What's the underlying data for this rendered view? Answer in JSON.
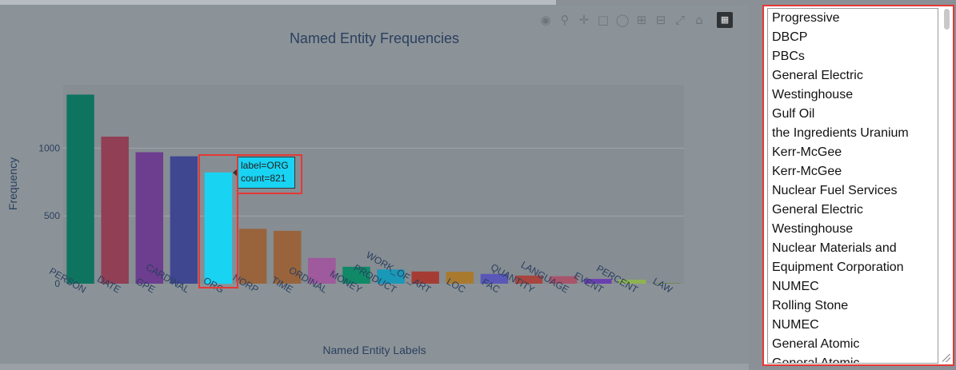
{
  "toolbar": {
    "icons": [
      "camera-icon",
      "zoom-icon",
      "pan-icon",
      "box-select-icon",
      "lasso-icon",
      "zoom-in-icon",
      "zoom-out-icon",
      "autoscale-icon",
      "reset-axes-icon",
      "plotly-logo-icon"
    ]
  },
  "chart_data": {
    "type": "bar",
    "title": "Named Entity Frequencies",
    "xlabel": "Named Entity Labels",
    "ylabel": "Frequency",
    "ylim": [
      0,
      1400
    ],
    "yticks": [
      0,
      500,
      1000
    ],
    "grid": true,
    "categories": [
      "PERSON",
      "DATE",
      "GPE",
      "CARDINAL",
      "ORG",
      "NORP",
      "TIME",
      "ORDINAL",
      "MONEY",
      "PRODUCT",
      "WORK_OF_ART",
      "LOC",
      "FAC",
      "QUANTITY",
      "LANGUAGE",
      "EVENT",
      "PERCENT",
      "LAW"
    ],
    "values": [
      1395,
      1085,
      970,
      940,
      821,
      405,
      390,
      190,
      125,
      105,
      90,
      88,
      72,
      60,
      55,
      35,
      30,
      5
    ],
    "colors": [
      "#0e7460",
      "#903f54",
      "#6d3d8f",
      "#3f4791",
      "#19d3f3",
      "#99643c",
      "#99643c",
      "#9e5a9c",
      "#0f8966",
      "#1a98b8",
      "#a53c34",
      "#a97a2e",
      "#5a57b8",
      "#a7453e",
      "#a8546a",
      "#6a3fb0",
      "#8fb352",
      "#6b8a4b"
    ],
    "hover": {
      "category": "ORG",
      "text_label": "label=ORG",
      "text_count": "count=821"
    }
  },
  "entity_list": [
    "Progressive",
    "DBCP",
    "PBCs",
    "General Electric",
    "Westinghouse",
    "Gulf Oil",
    "the Ingredients Uranium",
    "Kerr-McGee",
    "Kerr-McGee",
    "Nuclear Fuel Services",
    "General Electric",
    "Westinghouse",
    "Nuclear Materials and",
    "Equipment Corporation",
    "NUMEC",
    "Rolling Stone",
    "NUMEC",
    "General Atomic",
    "General Atomic"
  ]
}
